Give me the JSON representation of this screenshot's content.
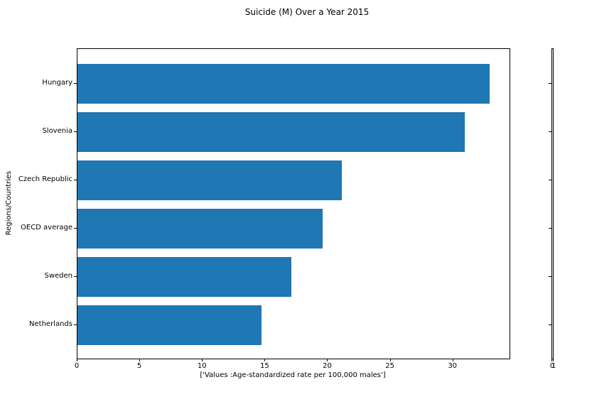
{
  "title": "Suicide (M) Over a Year 2015",
  "chart_data": {
    "type": "bar",
    "orientation": "horizontal",
    "title": "Suicide (M) Over a Year 2015",
    "categories_top_to_bottom": [
      "Hungary",
      "Slovenia",
      "Czech Republic",
      "OECD average",
      "Sweden",
      "Netherlands"
    ],
    "values": [
      32.9,
      30.9,
      21.1,
      19.6,
      17.1,
      14.7
    ],
    "xlabel": "['Values :Age-standardized rate per 100,000 males']",
    "ylabel": "Regions/Countries",
    "xlim": [
      0,
      34.5
    ],
    "x_ticks": [
      0,
      5,
      10,
      15,
      20,
      25,
      30
    ],
    "bar_color": "#1f77b4",
    "grid": false,
    "legend_position": "none",
    "background_color": "#ffffff",
    "axis_color": "#000000"
  },
  "secondary_axes": {
    "x_tick_labels": [
      "0",
      "1"
    ],
    "xlim": [
      0,
      1
    ]
  }
}
